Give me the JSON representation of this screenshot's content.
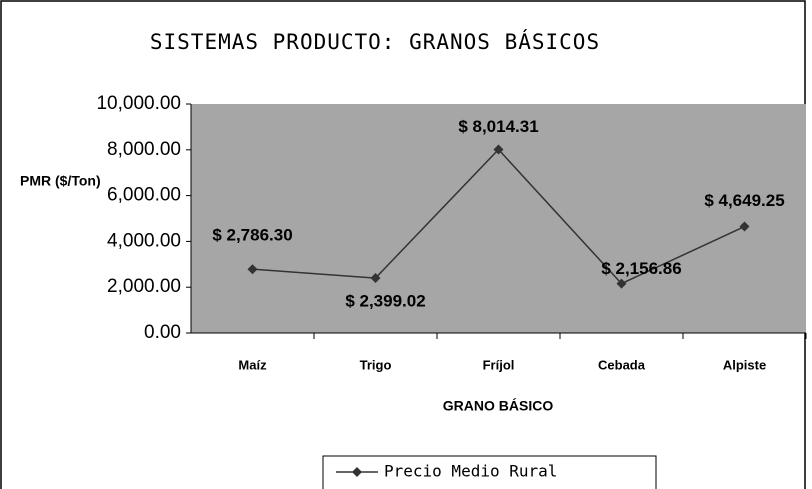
{
  "chart_data": {
    "type": "line",
    "title": "SISTEMAS PRODUCTO: GRANOS BÁSICOS",
    "y_label": "PMR ($/Ton)",
    "x_label": "GRANO BÁSICO",
    "categories": [
      "Maíz",
      "Trigo",
      "Fríjol",
      "Cebada",
      "Alpiste"
    ],
    "series": [
      {
        "name": "Precio Medio Rural",
        "color": "#333333",
        "values": [
          2786.3,
          2399.02,
          8014.31,
          2156.86,
          4649.25
        ],
        "value_labels": [
          "$ 2,786.30",
          "$ 2,399.02",
          "$ 8,014.31",
          "$ 2,156.86",
          "$ 4,649.25"
        ]
      }
    ],
    "ylim": [
      0,
      10000
    ],
    "yticks": [
      {
        "value": 0,
        "label": "0.00"
      },
      {
        "value": 2000,
        "label": "2,000.00"
      },
      {
        "value": 4000,
        "label": "4,000.00"
      },
      {
        "value": 6000,
        "label": "6,000.00"
      },
      {
        "value": 8000,
        "label": "8,000.00"
      },
      {
        "value": 10000,
        "label": "10,000.00"
      }
    ],
    "plot_background": "#a6a6a6"
  }
}
